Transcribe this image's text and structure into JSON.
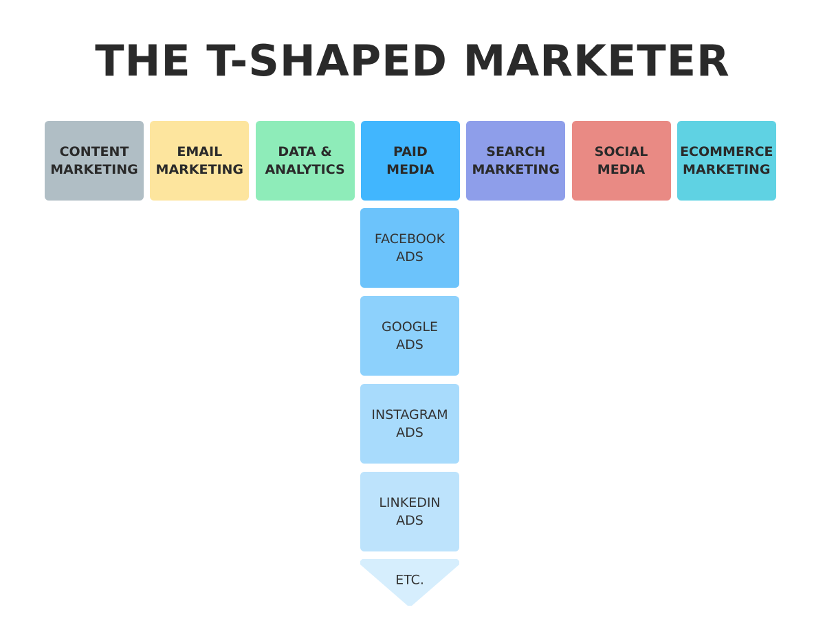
{
  "title": "THE T-SHAPED MARKETER",
  "skills": [
    [
      "CONTENT",
      "MARKETING"
    ],
    [
      "EMAIL",
      "MARKETING"
    ],
    [
      "DATA &",
      "ANALYTICS"
    ],
    [
      "PAID",
      "MEDIA"
    ],
    [
      "SEARCH",
      "MARKETING"
    ],
    [
      "SOCIAL",
      "MEDIA"
    ],
    [
      "ECOMMERCE",
      "MARKETING"
    ]
  ],
  "depth": [
    [
      "FACEBOOK",
      "ADS"
    ],
    [
      "GOOGLE",
      "ADS"
    ],
    [
      "INSTAGRAM",
      "ADS"
    ],
    [
      "LINKEDIN",
      "ADS"
    ]
  ],
  "more": "ETC."
}
